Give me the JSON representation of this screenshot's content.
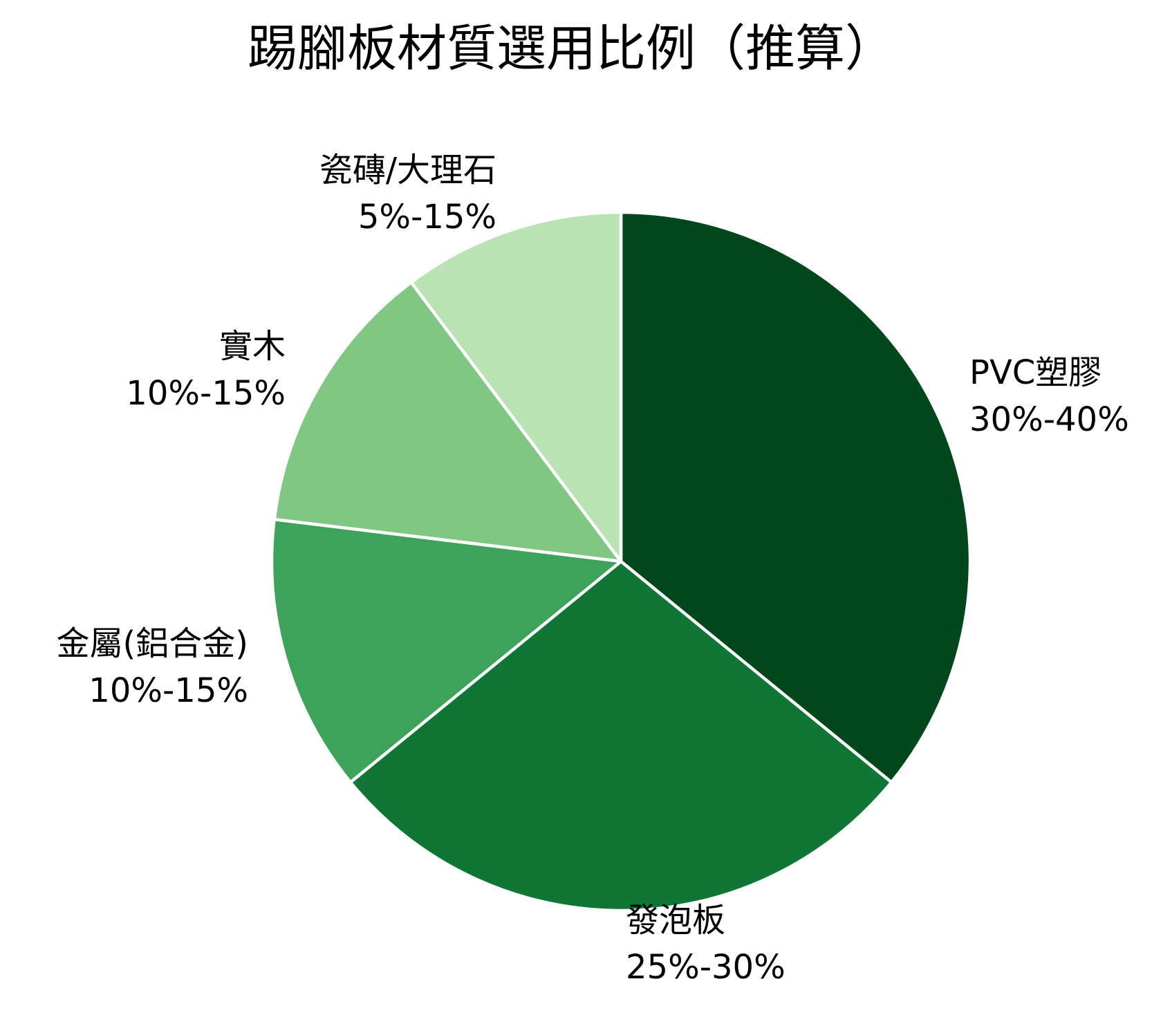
{
  "chart_data": {
    "type": "pie",
    "title": "踢腳板材質選用比例（推算）",
    "start": "top",
    "direction": "clockwise",
    "slices": [
      {
        "name": "PVC塑膠",
        "range_label": "30%-40%",
        "share": 35,
        "color": "#00471b"
      },
      {
        "name": "發泡板",
        "range_label": "25%-30%",
        "share": 27.5,
        "color": "#0f7635"
      },
      {
        "name": "金屬(鋁合金)",
        "range_label": "10%-15%",
        "share": 12.5,
        "color": "#3da35a"
      },
      {
        "name": "實木",
        "range_label": "10%-15%",
        "share": 12.5,
        "color": "#81c784"
      },
      {
        "name": "瓷磚/大理石",
        "range_label": "5%-15%",
        "share": 10,
        "color": "#b9e3b3"
      }
    ]
  }
}
